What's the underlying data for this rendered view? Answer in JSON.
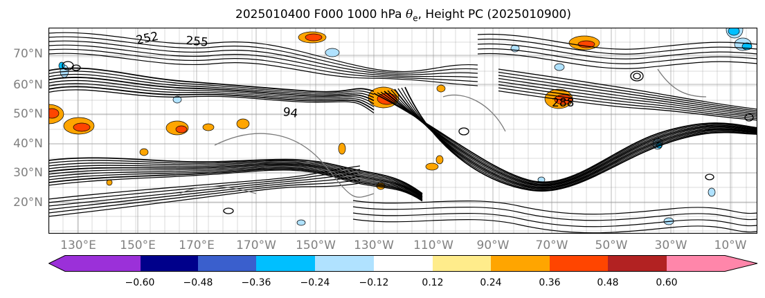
{
  "title_prefix": "2025010400 F000 1000 hPa ",
  "title_symbol": "θ",
  "title_subscript": "e",
  "title_suffix": ", Height PC (2025010900)",
  "lat_labels": [
    "70°N",
    "60°N",
    "50°N",
    "40°N",
    "30°N",
    "20°N"
  ],
  "lon_labels": [
    "130°E",
    "150°E",
    "170°E",
    "170°W",
    "150°W",
    "130°W",
    "110°W",
    "90°W",
    "70°W",
    "50°W",
    "30°W",
    "10°W"
  ],
  "contour_labels": [
    "252",
    "255",
    "94",
    "288"
  ],
  "colorbar": {
    "colors": [
      "#9b30d9",
      "#00008b",
      "#3a5fcd",
      "#00bfff",
      "#b0e2ff",
      "#ffffff",
      "#ffec8b",
      "#ffa500",
      "#ff4500",
      "#b22222",
      "#ff86aa"
    ],
    "ticks": [
      "−0.60",
      "−0.48",
      "−0.36",
      "−0.24",
      "−0.12",
      "0.12",
      "0.24",
      "0.36",
      "0.48",
      "0.60"
    ]
  },
  "field_colors": {
    "orange": "#ffa500",
    "red": "#ff4500",
    "lightblue": "#b0e2ff",
    "blue": "#00bfff"
  }
}
